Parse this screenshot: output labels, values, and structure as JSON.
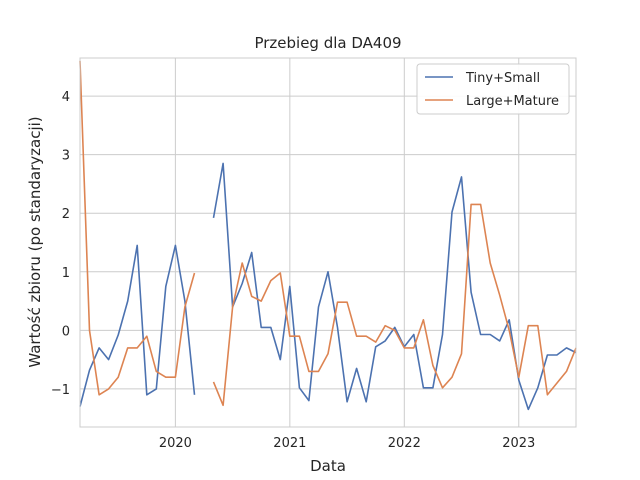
{
  "chart_data": {
    "type": "line",
    "title": "Przebieg dla DA409",
    "xlabel": "Data",
    "ylabel": "Wartość zbioru (po standaryzacji)",
    "x_start_month": "2019-03",
    "xlim": [
      "2019-03",
      "2023-07"
    ],
    "ylim": [
      -1.65,
      4.65
    ],
    "yticks": [
      -1,
      0,
      1,
      2,
      3,
      4
    ],
    "xticks": [
      {
        "label": "2020",
        "month": "2020-01"
      },
      {
        "label": "2021",
        "month": "2021-01"
      },
      {
        "label": "2022",
        "month": "2022-01"
      },
      {
        "label": "2023",
        "month": "2023-01"
      }
    ],
    "grid": true,
    "legend_position": "top-right",
    "series": [
      {
        "name": "Tiny+Small",
        "color": "#4c72b0",
        "values": [
          -1.3,
          -0.68,
          -0.3,
          -0.5,
          -0.08,
          0.5,
          1.45,
          -1.1,
          -1.0,
          0.75,
          1.45,
          0.5,
          -1.1,
          null,
          1.92,
          2.85,
          0.4,
          0.8,
          1.33,
          0.05,
          0.05,
          -0.5,
          0.75,
          -0.98,
          -1.2,
          0.4,
          1.0,
          0.05,
          -1.22,
          -0.65,
          -1.22,
          -0.28,
          -0.18,
          0.05,
          -0.28,
          -0.07,
          -0.98,
          -0.98,
          -0.07,
          2.02,
          2.62,
          0.65,
          -0.07,
          -0.07,
          -0.18,
          0.18,
          -0.85,
          -1.35,
          -0.98,
          -0.42,
          -0.42,
          -0.3,
          -0.38
        ]
      },
      {
        "name": "Large+Mature",
        "color": "#dd8452",
        "values": [
          4.6,
          0.0,
          -1.1,
          -1.0,
          -0.8,
          -0.3,
          -0.3,
          -0.1,
          -0.7,
          -0.8,
          -0.8,
          0.4,
          0.98,
          null,
          -0.88,
          -1.28,
          0.4,
          1.15,
          0.58,
          0.5,
          0.85,
          0.98,
          -0.1,
          -0.1,
          -0.7,
          -0.7,
          -0.4,
          0.48,
          0.48,
          -0.1,
          -0.1,
          -0.2,
          0.08,
          0.0,
          -0.3,
          -0.3,
          0.18,
          -0.6,
          -0.98,
          -0.8,
          -0.4,
          2.15,
          2.15,
          1.15,
          0.6,
          0.0,
          -0.8,
          0.08,
          0.08,
          -1.1,
          -0.9,
          -0.7,
          -0.3
        ]
      }
    ]
  }
}
